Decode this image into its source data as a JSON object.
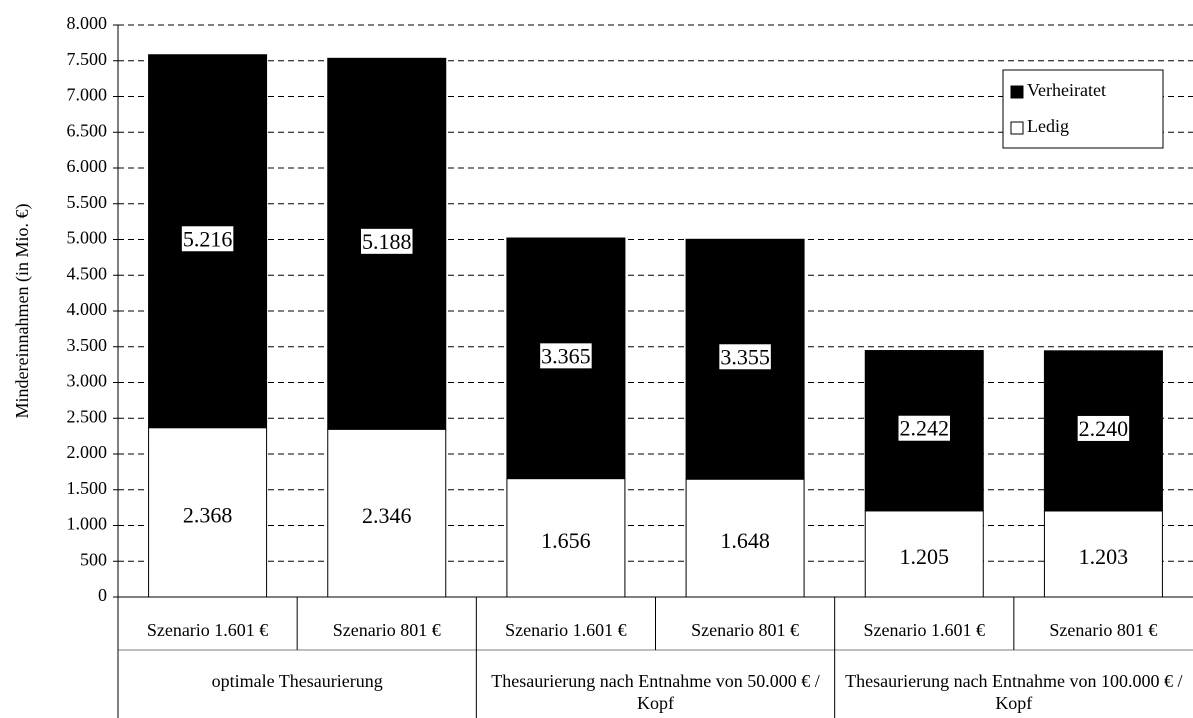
{
  "chart_data": {
    "type": "stacked_bar",
    "y_label": "Mindereinnahmen (in Mio. €)",
    "categories": [
      "Szenario 1.601 €",
      "Szenario 801 €",
      "Szenario 1.601 €",
      "Szenario 801 €",
      "Szenario 1.601 €",
      "Szenario 801 €"
    ],
    "groups": [
      {
        "label": "optimale Thesaurierung",
        "span": 2
      },
      {
        "label": "Thesaurierung nach Entnahme von 50.000 € / Kopf",
        "span": 2
      },
      {
        "label": "Thesaurierung nach Entnahme von 100.000 € / Kopf",
        "span": 2
      }
    ],
    "series": [
      {
        "name": "Ledig",
        "color": "#ffffff",
        "values": [
          2368,
          2346,
          1656,
          1648,
          1205,
          1203
        ],
        "value_labels": [
          "2.368",
          "2.346",
          "1.656",
          "1.648",
          "1.205",
          "1.203"
        ]
      },
      {
        "name": "Verheiratet",
        "color": "#000000",
        "values": [
          5216,
          5188,
          3365,
          3355,
          2242,
          2240
        ],
        "value_labels": [
          "5.216",
          "5.188",
          "3.365",
          "3.355",
          "2.242",
          "2.240"
        ]
      }
    ],
    "ylim": [
      0,
      8000
    ],
    "yticks": [
      0,
      500,
      {
        "value": 1000,
        "label": "1.000"
      },
      {
        "value": 1500,
        "label": "1.500"
      },
      {
        "value": 2000,
        "label": "2.000"
      },
      {
        "value": 2500,
        "label": "2.500"
      },
      {
        "value": 3000,
        "label": "3.000"
      },
      {
        "value": 3500,
        "label": "3.500"
      },
      {
        "value": 4000,
        "label": "4.000"
      },
      {
        "value": 4500,
        "label": "4.500"
      },
      {
        "value": 5000,
        "label": "5.000"
      },
      {
        "value": 5500,
        "label": "5.500"
      },
      {
        "value": 6000,
        "label": "6.000"
      },
      {
        "value": 6500,
        "label": "6.500"
      },
      {
        "value": 7000,
        "label": "7.000"
      },
      {
        "value": 7500,
        "label": "7.500"
      },
      {
        "value": 8000,
        "label": "8.000"
      }
    ],
    "grid": true,
    "legend_position": "top-right"
  }
}
